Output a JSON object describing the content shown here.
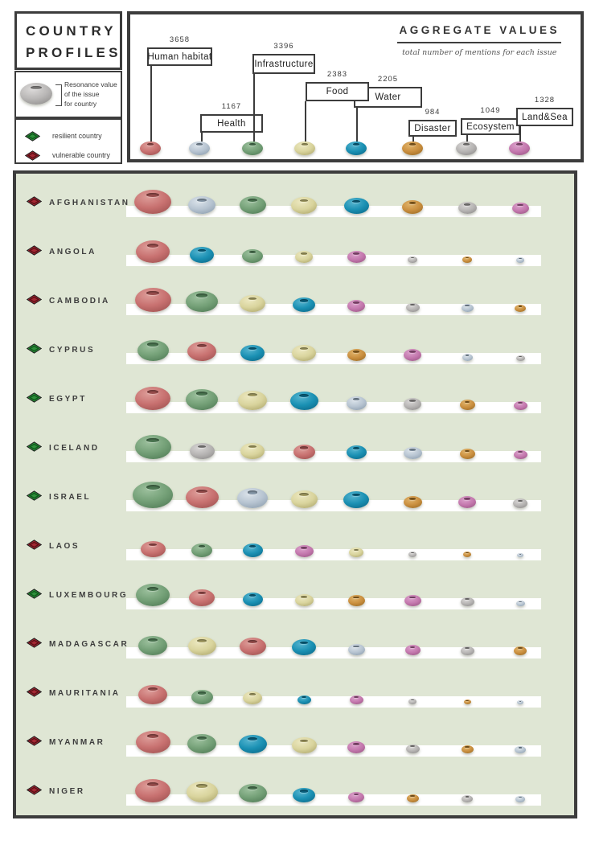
{
  "profiles_title": [
    "COUNTRY",
    "PROFILES"
  ],
  "legend": {
    "resonance_lines": [
      "Resonance value",
      "of the issue",
      "for country"
    ],
    "resilient_label": "resilient country",
    "vulnerable_label": "vulnerable country"
  },
  "aggregate": {
    "title": "AGGREGATE VALUES",
    "subtitle": "total number of mentions for each issue",
    "issues": [
      {
        "id": "habitat",
        "label": "Human habitat",
        "value": 3658
      },
      {
        "id": "health",
        "label": "Health",
        "value": 1167
      },
      {
        "id": "infrastructure",
        "label": "Infrastructure",
        "value": 3396
      },
      {
        "id": "food",
        "label": "Food",
        "value": 2383
      },
      {
        "id": "water",
        "label": "Water",
        "value": 2205
      },
      {
        "id": "disaster",
        "label": "Disaster",
        "value": 984
      },
      {
        "id": "ecosystem",
        "label": "Ecosystem",
        "value": 1049
      },
      {
        "id": "landsea",
        "label": "Land&Sea",
        "value": 1328
      }
    ]
  },
  "issue_colors": {
    "habitat": {
      "light": "#dd9d99",
      "base": "#c87170",
      "dark": "#9a4e4d"
    },
    "health": {
      "light": "#dbe3ea",
      "base": "#b7c4d1",
      "dark": "#8799aa"
    },
    "infrastructure": {
      "light": "#9cc09d",
      "base": "#74a077",
      "dark": "#4c7752"
    },
    "food": {
      "light": "#ece8c0",
      "base": "#d9d49d",
      "dark": "#a9a266"
    },
    "water": {
      "light": "#55b4cf",
      "base": "#1a90b3",
      "dark": "#0b6584"
    },
    "disaster": {
      "light": "#e0b36a",
      "base": "#ca8f3f",
      "dark": "#966722"
    },
    "ecosystem": {
      "light": "#d8d6d5",
      "base": "#b6b4b3",
      "dark": "#898786"
    },
    "landsea": {
      "light": "#daa0ca",
      "base": "#c478ae",
      "dark": "#975381"
    }
  },
  "status_colors": {
    "resilient": {
      "fill": "#2e8f3b",
      "inner": "#0e5a1b"
    },
    "vulnerable": {
      "fill": "#a32733",
      "inner": "#5c0f16"
    },
    "outline": "#1f1f1f"
  },
  "chart_data": [
    {
      "type": "bar",
      "title": "AGGREGATE VALUES",
      "subtitle": "total number of mentions for each issue",
      "categories": [
        "Human habitat",
        "Health",
        "Infrastructure",
        "Food",
        "Water",
        "Disaster",
        "Ecosystem",
        "Land&Sea"
      ],
      "values": [
        3658,
        1167,
        3396,
        2383,
        2205,
        984,
        1049,
        1328
      ],
      "legend_position": "top-right",
      "note": "each issue shown as a labeled box connected to a colored donut icon"
    },
    {
      "type": "scatter",
      "variant": "bubble-matrix",
      "title": "COUNTRY PROFILES",
      "x_label": "rank (largest to smallest resonance)",
      "size_label": "relative resonance of the issue for the country (bubble diameter, px)",
      "rows": [
        {
          "country": "AFGHANISTAN",
          "status": "vulnerable",
          "bubbles": [
            {
              "issue": "habitat",
              "size": 46
            },
            {
              "issue": "health",
              "size": 34
            },
            {
              "issue": "infrastructure",
              "size": 33
            },
            {
              "issue": "food",
              "size": 32
            },
            {
              "issue": "water",
              "size": 31
            },
            {
              "issue": "disaster",
              "size": 26
            },
            {
              "issue": "ecosystem",
              "size": 23
            },
            {
              "issue": "landsea",
              "size": 21
            }
          ]
        },
        {
          "country": "ANGOLA",
          "status": "vulnerable",
          "bubbles": [
            {
              "issue": "habitat",
              "size": 42
            },
            {
              "issue": "water",
              "size": 30
            },
            {
              "issue": "infrastructure",
              "size": 26
            },
            {
              "issue": "food",
              "size": 22
            },
            {
              "issue": "landsea",
              "size": 23
            },
            {
              "issue": "ecosystem",
              "size": 12
            },
            {
              "issue": "disaster",
              "size": 12
            },
            {
              "issue": "health",
              "size": 10
            }
          ]
        },
        {
          "country": "CAMBODIA",
          "status": "vulnerable",
          "bubbles": [
            {
              "issue": "habitat",
              "size": 45
            },
            {
              "issue": "infrastructure",
              "size": 40
            },
            {
              "issue": "food",
              "size": 32
            },
            {
              "issue": "water",
              "size": 28
            },
            {
              "issue": "landsea",
              "size": 22
            },
            {
              "issue": "ecosystem",
              "size": 17
            },
            {
              "issue": "health",
              "size": 15
            },
            {
              "issue": "disaster",
              "size": 14
            }
          ]
        },
        {
          "country": "CYPRUS",
          "status": "resilient",
          "bubbles": [
            {
              "issue": "infrastructure",
              "size": 39
            },
            {
              "issue": "habitat",
              "size": 36
            },
            {
              "issue": "water",
              "size": 30
            },
            {
              "issue": "food",
              "size": 30
            },
            {
              "issue": "disaster",
              "size": 23
            },
            {
              "issue": "landsea",
              "size": 22
            },
            {
              "issue": "health",
              "size": 13
            },
            {
              "issue": "ecosystem",
              "size": 11
            }
          ]
        },
        {
          "country": "EGYPT",
          "status": "resilient",
          "bubbles": [
            {
              "issue": "habitat",
              "size": 44
            },
            {
              "issue": "infrastructure",
              "size": 40
            },
            {
              "issue": "food",
              "size": 36
            },
            {
              "issue": "water",
              "size": 35
            },
            {
              "issue": "health",
              "size": 25
            },
            {
              "issue": "ecosystem",
              "size": 22
            },
            {
              "issue": "disaster",
              "size": 19
            },
            {
              "issue": "landsea",
              "size": 17
            }
          ]
        },
        {
          "country": "ICELAND",
          "status": "resilient",
          "bubbles": [
            {
              "issue": "infrastructure",
              "size": 45
            },
            {
              "issue": "ecosystem",
              "size": 31
            },
            {
              "issue": "food",
              "size": 30
            },
            {
              "issue": "habitat",
              "size": 27
            },
            {
              "issue": "water",
              "size": 25
            },
            {
              "issue": "health",
              "size": 23
            },
            {
              "issue": "disaster",
              "size": 19
            },
            {
              "issue": "landsea",
              "size": 17
            }
          ]
        },
        {
          "country": "ISRAEL",
          "status": "resilient",
          "bubbles": [
            {
              "issue": "infrastructure",
              "size": 50
            },
            {
              "issue": "habitat",
              "size": 41
            },
            {
              "issue": "health",
              "size": 38
            },
            {
              "issue": "food",
              "size": 33
            },
            {
              "issue": "water",
              "size": 32
            },
            {
              "issue": "disaster",
              "size": 23
            },
            {
              "issue": "landsea",
              "size": 22
            },
            {
              "issue": "ecosystem",
              "size": 18
            }
          ]
        },
        {
          "country": "LAOS",
          "status": "vulnerable",
          "bubbles": [
            {
              "issue": "habitat",
              "size": 31
            },
            {
              "issue": "infrastructure",
              "size": 26
            },
            {
              "issue": "water",
              "size": 25
            },
            {
              "issue": "landsea",
              "size": 23
            },
            {
              "issue": "food",
              "size": 18
            },
            {
              "issue": "ecosystem",
              "size": 10
            },
            {
              "issue": "disaster",
              "size": 10
            },
            {
              "issue": "health",
              "size": 8
            }
          ]
        },
        {
          "country": "LUXEMBOURG",
          "status": "resilient",
          "bubbles": [
            {
              "issue": "infrastructure",
              "size": 42
            },
            {
              "issue": "habitat",
              "size": 32
            },
            {
              "issue": "water",
              "size": 25
            },
            {
              "issue": "food",
              "size": 23
            },
            {
              "issue": "disaster",
              "size": 21
            },
            {
              "issue": "landsea",
              "size": 21
            },
            {
              "issue": "ecosystem",
              "size": 17
            },
            {
              "issue": "health",
              "size": 11
            }
          ]
        },
        {
          "country": "MADAGASCAR",
          "status": "vulnerable",
          "bubbles": [
            {
              "issue": "infrastructure",
              "size": 36
            },
            {
              "issue": "food",
              "size": 35
            },
            {
              "issue": "habitat",
              "size": 33
            },
            {
              "issue": "water",
              "size": 30
            },
            {
              "issue": "health",
              "size": 21
            },
            {
              "issue": "landsea",
              "size": 19
            },
            {
              "issue": "ecosystem",
              "size": 17
            },
            {
              "issue": "disaster",
              "size": 16
            }
          ]
        },
        {
          "country": "MAURITANIA",
          "status": "vulnerable",
          "bubbles": [
            {
              "issue": "habitat",
              "size": 36
            },
            {
              "issue": "infrastructure",
              "size": 27
            },
            {
              "issue": "food",
              "size": 24
            },
            {
              "issue": "water",
              "size": 17
            },
            {
              "issue": "landsea",
              "size": 17
            },
            {
              "issue": "ecosystem",
              "size": 10
            },
            {
              "issue": "disaster",
              "size": 9
            },
            {
              "issue": "health",
              "size": 8
            }
          ]
        },
        {
          "country": "MYANMAR",
          "status": "vulnerable",
          "bubbles": [
            {
              "issue": "habitat",
              "size": 43
            },
            {
              "issue": "infrastructure",
              "size": 36
            },
            {
              "issue": "water",
              "size": 35
            },
            {
              "issue": "food",
              "size": 31
            },
            {
              "issue": "landsea",
              "size": 22
            },
            {
              "issue": "ecosystem",
              "size": 17
            },
            {
              "issue": "disaster",
              "size": 15
            },
            {
              "issue": "health",
              "size": 14
            }
          ]
        },
        {
          "country": "NIGER",
          "status": "vulnerable",
          "bubbles": [
            {
              "issue": "habitat",
              "size": 44
            },
            {
              "issue": "food",
              "size": 39
            },
            {
              "issue": "infrastructure",
              "size": 35
            },
            {
              "issue": "water",
              "size": 28
            },
            {
              "issue": "landsea",
              "size": 20
            },
            {
              "issue": "disaster",
              "size": 15
            },
            {
              "issue": "ecosystem",
              "size": 14
            },
            {
              "issue": "health",
              "size": 12
            }
          ]
        }
      ]
    }
  ]
}
